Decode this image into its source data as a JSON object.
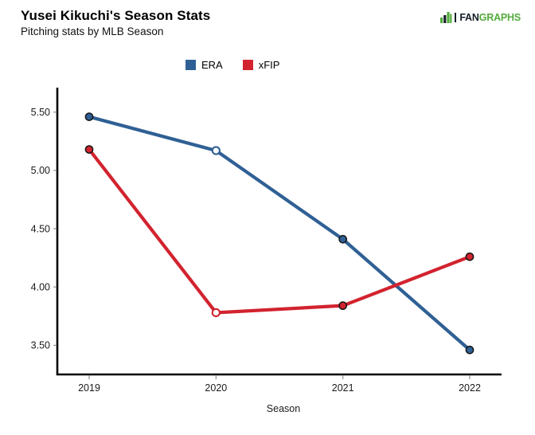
{
  "header": {
    "title": "Yusei Kikuchi's Season Stats",
    "subtitle": "Pitching stats by MLB Season",
    "logo": {
      "fan": "FAN",
      "graphs": "GRAPHS"
    }
  },
  "colors": {
    "axis": "#000000",
    "tick": "#8f8f8f",
    "tick_label": "#1a1a1a",
    "era_blue": "#2f6095",
    "xfip_red": "#d2232f",
    "marker_stroke": "#151515",
    "open_marker_fill": "#ffffff",
    "logo_green": "#53ac3c",
    "logo_dark": "#17202a"
  },
  "chart_data": {
    "type": "line",
    "title": "Yusei Kikuchi's Season Stats",
    "subtitle": "Pitching stats by MLB Season",
    "xlabel": "Season",
    "ylabel": "",
    "categories": [
      "2019",
      "2020",
      "2021",
      "2022"
    ],
    "y_ticks": [
      "5.50",
      "5.00",
      "4.50",
      "4.00",
      "3.50"
    ],
    "ylim": [
      3.25,
      5.71
    ],
    "grid": false,
    "legend_position": "top-center",
    "open_marker_category": "2020",
    "series": [
      {
        "name": "ERA",
        "color": "#2f6095",
        "values": [
          5.46,
          5.17,
          4.41,
          3.46
        ]
      },
      {
        "name": "xFIP",
        "color": "#d2232f",
        "values": [
          5.18,
          3.78,
          3.84,
          4.26
        ]
      }
    ]
  }
}
